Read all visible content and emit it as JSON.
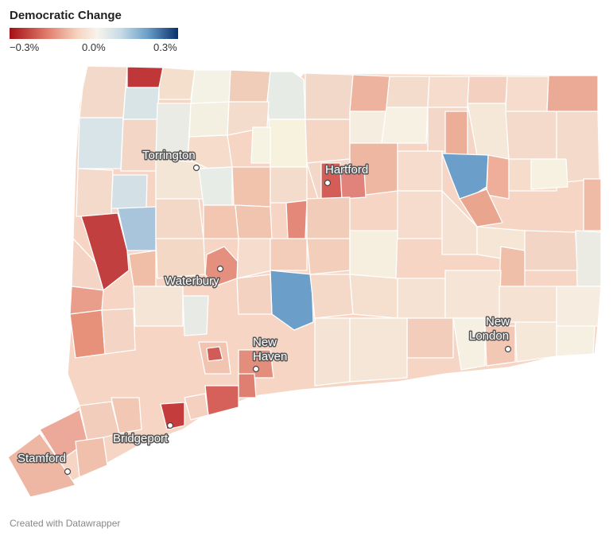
{
  "legend": {
    "title": "Democratic Change",
    "ticks": [
      "−0.3%",
      "0.0%",
      "0.3%"
    ],
    "colors": [
      "#b2182b",
      "#e0826b",
      "#f7cfb9",
      "#f7f4ea",
      "#c6dae6",
      "#6a9ec9",
      "#08306b"
    ]
  },
  "cities": [
    {
      "name": "Torrington",
      "lines": [
        "Torrington"
      ]
    },
    {
      "name": "Hartford",
      "lines": [
        "Hartford"
      ]
    },
    {
      "name": "Waterbury",
      "lines": [
        "Waterbury"
      ]
    },
    {
      "name": "New Haven",
      "lines": [
        "New",
        "Haven"
      ]
    },
    {
      "name": "New London",
      "lines": [
        "New",
        "London"
      ]
    },
    {
      "name": "Bridgeport",
      "lines": [
        "Bridgeport"
      ]
    },
    {
      "name": "Stamford",
      "lines": [
        "Stamford"
      ]
    }
  ],
  "footer": "Created with Datawrapper"
}
